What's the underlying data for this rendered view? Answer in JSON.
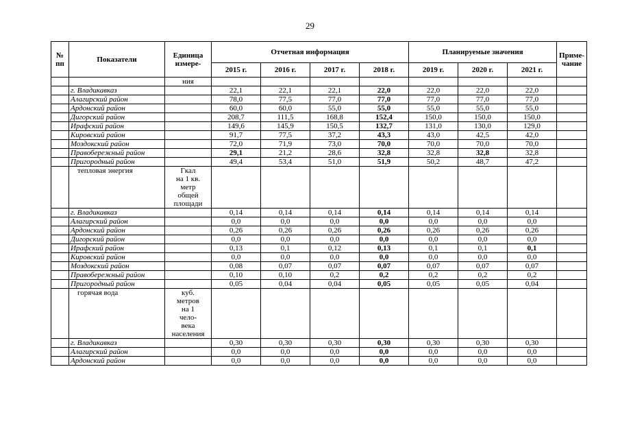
{
  "page": {
    "number": "29"
  },
  "table": {
    "header": {
      "col_num": "№\nпп",
      "col_indicators": "Показатели",
      "col_unit": "Единица\nизмере-",
      "group_report": "Отчетная информация",
      "group_plan": "Планируемые значения",
      "col_note": "Приме-\nчание",
      "years_report": [
        "2015 г.",
        "2016 г.",
        "2017 г.",
        "2018 г."
      ],
      "years_plan": [
        "2019 г.",
        "2020 г.",
        "2021 г."
      ]
    },
    "rows": [
      {
        "type": "continuation",
        "name": "",
        "unit": "ния",
        "values": [
          "",
          "",
          "",
          "",
          "",
          "",
          ""
        ],
        "bold": []
      },
      {
        "type": "district",
        "name": "г. Владикавказ",
        "unit": "",
        "values": [
          "22,1",
          "22,1",
          "22,1",
          "22,0",
          "22,0",
          "22,0",
          "22,0"
        ],
        "bold": [
          3
        ]
      },
      {
        "type": "district",
        "name": "Алагирский район",
        "unit": "",
        "values": [
          "78,0",
          "77,5",
          "77,0",
          "77,0",
          "77,0",
          "77,0",
          "77,0"
        ],
        "bold": [
          3
        ]
      },
      {
        "type": "district",
        "name": "Ардонский район",
        "unit": "",
        "values": [
          "60,0",
          "60,0",
          "55,0",
          "55,0",
          "55,0",
          "55,0",
          "55,0"
        ],
        "bold": [
          3
        ]
      },
      {
        "type": "district",
        "name": "Дигорский район",
        "unit": "",
        "values": [
          "208,7",
          "111,5",
          "168,8",
          "152,4",
          "150,0",
          "150,0",
          "150,0"
        ],
        "bold": [
          3
        ]
      },
      {
        "type": "district",
        "name": "Ирафский район",
        "unit": "",
        "values": [
          "149,6",
          "145,9",
          "150,5",
          "132,7",
          "131,0",
          "130,0",
          "129,0"
        ],
        "bold": [
          3
        ]
      },
      {
        "type": "district",
        "name": "Кировский район",
        "unit": "",
        "values": [
          "91,7",
          "77,5",
          "37,2",
          "43,3",
          "43,0",
          "42,5",
          "42,0"
        ],
        "bold": [
          3
        ]
      },
      {
        "type": "district",
        "name": "Моздокский район",
        "unit": "",
        "values": [
          "72,0",
          "71,9",
          "73,0",
          "70,0",
          "70,0",
          "70,0",
          "70,0"
        ],
        "bold": [
          3
        ]
      },
      {
        "type": "district",
        "name": "Правобережный район",
        "unit": "",
        "values": [
          "29,1",
          "21,2",
          "28,6",
          "32,8",
          "32,8",
          "32,8",
          "32,8"
        ],
        "bold": [
          0,
          3,
          5
        ]
      },
      {
        "type": "district",
        "name": "Пригородный район",
        "unit": "",
        "values": [
          "49,4",
          "53,4",
          "51,0",
          "51,9",
          "50,2",
          "48,7",
          "47,2"
        ],
        "bold": [
          3
        ]
      },
      {
        "type": "section",
        "name": "тепловая энергия",
        "unit": "Гкал\nна 1 кв.\nметр\nобщей\nплощади",
        "values": [
          "",
          "",
          "",
          "",
          "",
          "",
          ""
        ],
        "bold": []
      },
      {
        "type": "district",
        "name": "г. Владикавказ",
        "unit": "",
        "values": [
          "0,14",
          "0,14",
          "0,14",
          "0,14",
          "0,14",
          "0,14",
          "0,14"
        ],
        "bold": [
          3
        ]
      },
      {
        "type": "district",
        "name": "Алагирский район",
        "unit": "",
        "values": [
          "0,0",
          "0,0",
          "0,0",
          "0,0",
          "0,0",
          "0,0",
          "0,0"
        ],
        "bold": [
          3
        ]
      },
      {
        "type": "district",
        "name": "Ардонский район",
        "unit": "",
        "values": [
          "0,26",
          "0,26",
          "0,26",
          "0,26",
          "0,26",
          "0,26",
          "0,26"
        ],
        "bold": [
          3
        ]
      },
      {
        "type": "district",
        "name": "Дигорский район",
        "unit": "",
        "values": [
          "0,0",
          "0,0",
          "0,0",
          "0,0",
          "0,0",
          "0,0",
          "0,0"
        ],
        "bold": [
          3
        ]
      },
      {
        "type": "district",
        "name": "Ирафский район",
        "unit": "",
        "values": [
          "0,13",
          "0,1",
          "0,12",
          "0,13",
          "0,1",
          "0,1",
          "0,1"
        ],
        "bold": [
          3,
          6
        ]
      },
      {
        "type": "district",
        "name": "Кировский район",
        "unit": "",
        "values": [
          "0,0",
          "0,0",
          "0,0",
          "0,0",
          "0,0",
          "0,0",
          "0,0"
        ],
        "bold": [
          3
        ]
      },
      {
        "type": "district",
        "name": "Моздокский район",
        "unit": "",
        "values": [
          "0,08",
          "0,07",
          "0,07",
          "0,07",
          "0,07",
          "0,07",
          "0,07"
        ],
        "bold": [
          3
        ]
      },
      {
        "type": "district",
        "name": "Правобережный район",
        "unit": "",
        "values": [
          "0,10",
          "0,10",
          "0,2",
          "0,2",
          "0,2",
          "0,2",
          "0,2"
        ],
        "bold": [
          3
        ]
      },
      {
        "type": "district",
        "name": "Пригородный район",
        "unit": "",
        "values": [
          "0,05",
          "0,04",
          "0,04",
          "0,05",
          "0,05",
          "0,05",
          "0,04"
        ],
        "bold": [
          3
        ]
      },
      {
        "type": "section",
        "name": "горячая вода",
        "unit": "куб.\nметров\nна 1\nчело-\nвека\nнаселения",
        "values": [
          "",
          "",
          "",
          "",
          "",
          "",
          ""
        ],
        "bold": []
      },
      {
        "type": "district",
        "name": "г. Владикавказ",
        "unit": "",
        "values": [
          "0,30",
          "0,30",
          "0,30",
          "0,30",
          "0,30",
          "0,30",
          "0,30"
        ],
        "bold": [
          3
        ]
      },
      {
        "type": "district",
        "name": "Алагирский район",
        "unit": "",
        "values": [
          "0,0",
          "0,0",
          "0,0",
          "0,0",
          "0,0",
          "0,0",
          "0,0"
        ],
        "bold": [
          3
        ]
      },
      {
        "type": "district",
        "name": "Ардонский район",
        "unit": "",
        "values": [
          "0,0",
          "0,0",
          "0,0",
          "0,0",
          "0,0",
          "0,0",
          "0,0"
        ],
        "bold": [
          3
        ]
      }
    ]
  }
}
